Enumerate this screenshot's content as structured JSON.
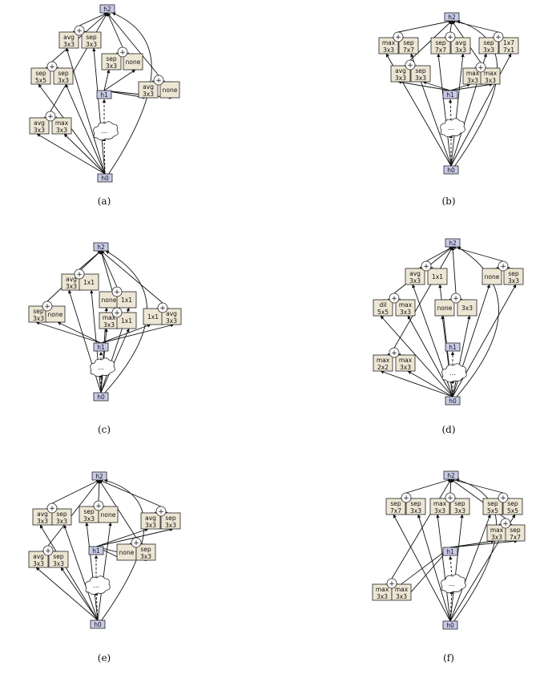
{
  "panels": [
    {
      "caption": "(a)",
      "nodes": {
        "h0": "h0",
        "h1": "h1",
        "h2": "h2",
        "cloud": "..."
      },
      "ops": [
        [
          "avg",
          "3x3"
        ],
        [
          "sep",
          "3x3"
        ],
        [
          "sep",
          "5x5"
        ],
        [
          "sep",
          "3x3"
        ],
        [
          "avg",
          "3x3"
        ],
        [
          "max",
          "3x3"
        ],
        [
          "sep",
          "3x3"
        ],
        [
          "none",
          ""
        ],
        [
          "avg",
          "3x3"
        ],
        [
          "none",
          ""
        ]
      ],
      "add_symbol": "+"
    },
    {
      "caption": "(b)",
      "nodes": {
        "h0": "h0",
        "h1": "h1",
        "h2": "h2",
        "cloud": "..."
      },
      "ops": [
        [
          "max",
          "3x3"
        ],
        [
          "sep",
          "7x7"
        ],
        [
          "sep",
          "7x7"
        ],
        [
          "avg",
          "3x3"
        ],
        [
          "sep",
          "3x3"
        ],
        [
          "1x7",
          "7x1"
        ],
        [
          "avg",
          "3x3"
        ],
        [
          "sep",
          "3x3"
        ],
        [
          "max",
          "3x3"
        ],
        [
          "max",
          "3x3"
        ]
      ],
      "add_symbol": "+"
    },
    {
      "caption": "(c)",
      "nodes": {
        "h0": "h0",
        "h1": "h1",
        "h2": "h2",
        "cloud": "..."
      },
      "ops": [
        [
          "avg",
          "3x3"
        ],
        [
          "1x1",
          ""
        ],
        [
          "none",
          ""
        ],
        [
          "1x1",
          ""
        ],
        [
          "max",
          "3x3"
        ],
        [
          "1x1",
          ""
        ],
        [
          "sep",
          "3x3"
        ],
        [
          "none",
          ""
        ],
        [
          "1x1",
          ""
        ],
        [
          "avg",
          "3x3"
        ]
      ],
      "add_symbol": "+"
    },
    {
      "caption": "(d)",
      "nodes": {
        "h0": "h0",
        "h1": "h1",
        "h2": "h2",
        "cloud": "..."
      },
      "ops": [
        [
          "avg",
          "3x3"
        ],
        [
          "1x1",
          ""
        ],
        [
          "none",
          ""
        ],
        [
          "sep",
          "3x3"
        ],
        [
          "dil",
          "5x5"
        ],
        [
          "max",
          "3x3"
        ],
        [
          "none",
          ""
        ],
        [
          "3x3",
          ""
        ],
        [
          "max",
          "2x2"
        ],
        [
          "max",
          "3x3"
        ]
      ],
      "add_symbol": "+"
    },
    {
      "caption": "(e)",
      "nodes": {
        "h0": "h0",
        "h1": "h1",
        "h2": "h2",
        "cloud": "..."
      },
      "ops": [
        [
          "avg",
          "3x3"
        ],
        [
          "sep",
          "3x3"
        ],
        [
          "sep",
          "3x3"
        ],
        [
          "none",
          ""
        ],
        [
          "avg",
          "3x3"
        ],
        [
          "sep",
          "3x3"
        ],
        [
          "avg",
          "3x3"
        ],
        [
          "sep",
          "3x3"
        ],
        [
          "none",
          ""
        ],
        [
          "sep",
          "3x3"
        ]
      ],
      "add_symbol": "+"
    },
    {
      "caption": "(f)",
      "nodes": {
        "h0": "h0",
        "h1": "h1",
        "h2": "h2",
        "cloud": "..."
      },
      "ops": [
        [
          "sep",
          "7x7"
        ],
        [
          "sep",
          "3x3"
        ],
        [
          "max",
          "3x3"
        ],
        [
          "sep",
          "3x3"
        ],
        [
          "sep",
          "5x5"
        ],
        [
          "sep",
          "5x5"
        ],
        [
          "max",
          "3x3"
        ],
        [
          "sep",
          "7x7"
        ],
        [
          "max",
          "3x3"
        ],
        [
          "max",
          "3x3"
        ]
      ],
      "add_symbol": "+"
    }
  ]
}
